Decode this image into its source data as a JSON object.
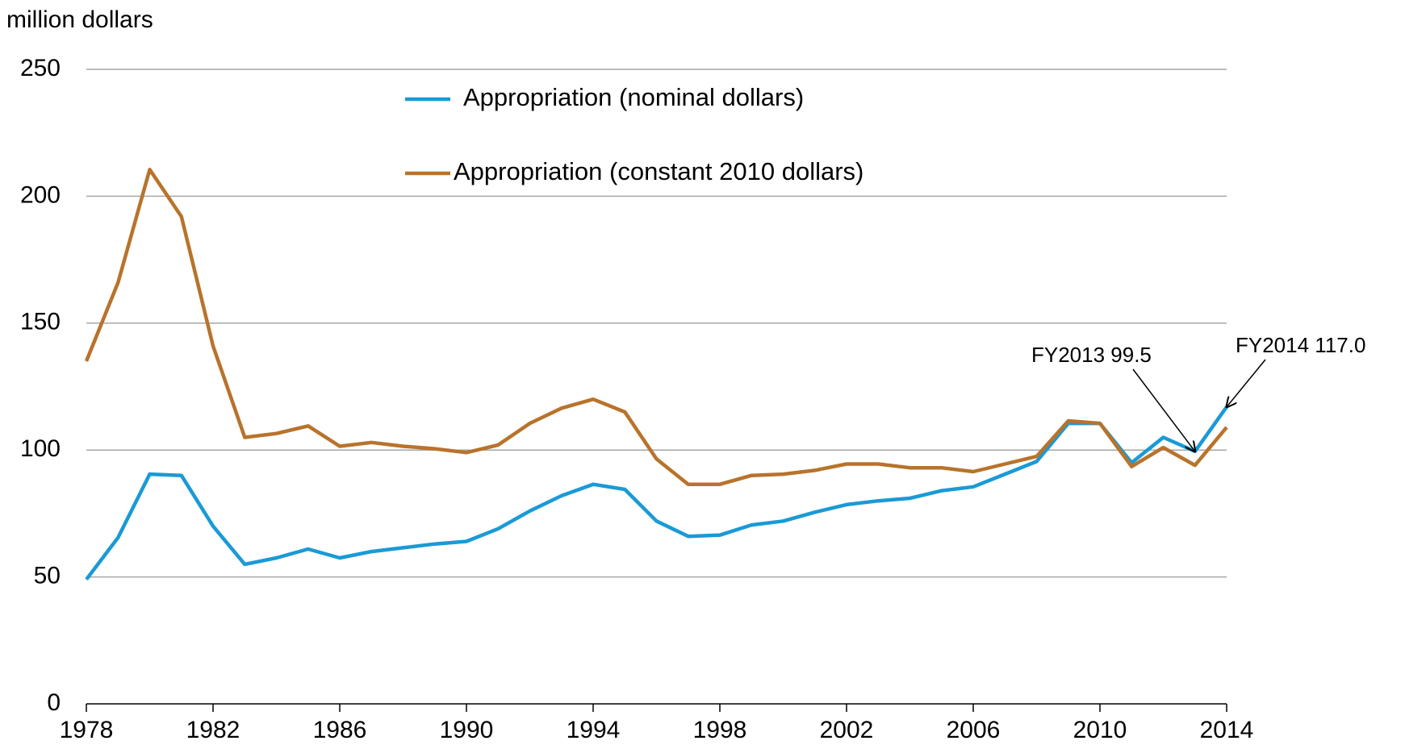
{
  "chart_data": {
    "type": "line",
    "y_axis_label": "million dollars",
    "x": [
      1978,
      1979,
      1980,
      1981,
      1982,
      1983,
      1984,
      1985,
      1986,
      1987,
      1988,
      1989,
      1990,
      1991,
      1992,
      1993,
      1994,
      1995,
      1996,
      1997,
      1998,
      1999,
      2000,
      2001,
      2002,
      2003,
      2004,
      2005,
      2006,
      2007,
      2008,
      2009,
      2010,
      2011,
      2012,
      2013,
      2014
    ],
    "series": [
      {
        "name": "Appropriation (nominal dollars)",
        "color": "#1a9ad6",
        "values": [
          49,
          65.5,
          90.5,
          90,
          70,
          55,
          57.5,
          61,
          57.5,
          60,
          61.5,
          63,
          64,
          69,
          76,
          82,
          86.5,
          84.5,
          72,
          66,
          66.5,
          70.5,
          72,
          75.5,
          78.5,
          80,
          81,
          84,
          85.5,
          90.5,
          95.5,
          110.5,
          110.5,
          95,
          105,
          99.5,
          117
        ]
      },
      {
        "name": "Appropriation (constant 2010 dollars)",
        "color": "#b8732c",
        "values": [
          135,
          166,
          210.5,
          192,
          141,
          105,
          106.5,
          109.5,
          101.5,
          103,
          101.5,
          100.5,
          99,
          102,
          110.5,
          116.5,
          120,
          115,
          96.5,
          86.5,
          86.5,
          90,
          90.5,
          92,
          94.5,
          94.5,
          93,
          93,
          91.5,
          94.5,
          97.5,
          111.5,
          110.5,
          93.5,
          101,
          94,
          109
        ]
      }
    ],
    "annotations": [
      {
        "text": "FY2013 99.5",
        "x": 2013,
        "y": 99.5
      },
      {
        "text": "FY2014 117.0",
        "x": 2014,
        "y": 117
      }
    ],
    "xlim": [
      1978,
      2014
    ],
    "xticks": [
      1978,
      1982,
      1986,
      1990,
      1994,
      1998,
      2002,
      2006,
      2010,
      2014
    ],
    "ylim": [
      0,
      250
    ],
    "yticks": [
      0,
      50,
      100,
      150,
      200,
      250
    ],
    "grid": true,
    "legend": "top"
  }
}
